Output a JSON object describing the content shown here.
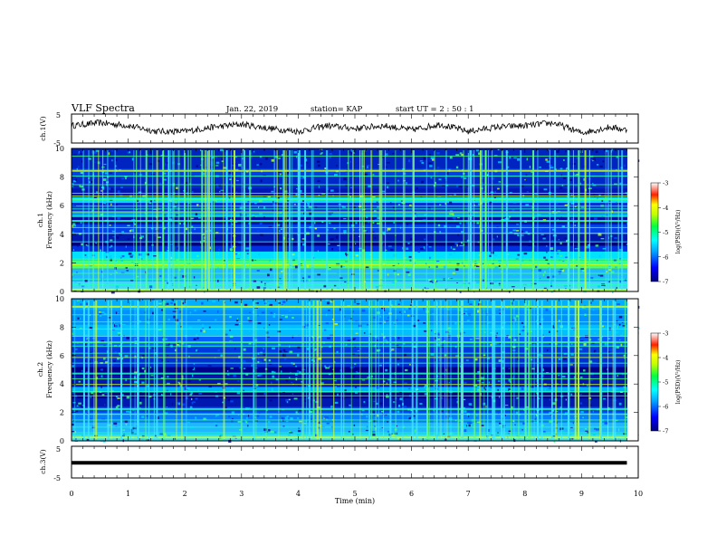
{
  "header": {
    "title": "VLF Spectra",
    "date": "Jan. 22, 2019",
    "station": "station= KAP",
    "start_ut": "start  UT =  2 : 50 : 1"
  },
  "chart_data": [
    {
      "type": "line",
      "panel": "ch1-waveform",
      "ylabel": "ch.1(V)",
      "ylim": [
        -5,
        5
      ],
      "yticks": [
        "5",
        "-5"
      ],
      "xlim": [
        0,
        10
      ],
      "series": [
        {
          "x": [
            0,
            0.5,
            1,
            1.5,
            2,
            2.5,
            3,
            3.5,
            4,
            4.5,
            5,
            5.5,
            6,
            6.5,
            7,
            7.5,
            8,
            8.5,
            9,
            9.5,
            9.8
          ],
          "values": [
            1,
            2,
            1,
            -1,
            -1,
            0.5,
            1.5,
            0,
            -1,
            1,
            0,
            1,
            -0.5,
            1.5,
            -1,
            0.5,
            1,
            2,
            -1.5,
            0.5,
            -0.5
          ]
        }
      ]
    },
    {
      "type": "heatmap",
      "panel": "ch1-spectrogram",
      "ylabel_top": "ch.1",
      "ylabel": "Frequency (kHz)",
      "ylim": [
        0,
        10
      ],
      "yticks": [
        "0",
        "2",
        "4",
        "6",
        "8",
        "10"
      ],
      "xlim": [
        0,
        10
      ],
      "colorbar": {
        "label": "log(PSD)(V²/Hz)",
        "range": [
          -7,
          -3
        ],
        "ticks": [
          "-3",
          "-4",
          "-5",
          "-6",
          "-7"
        ]
      }
    },
    {
      "type": "heatmap",
      "panel": "ch2-spectrogram",
      "ylabel_top": "ch.2",
      "ylabel": "Frequency (kHz)",
      "ylim": [
        0,
        10
      ],
      "yticks": [
        "0",
        "2",
        "4",
        "6",
        "8",
        "10"
      ],
      "xlim": [
        0,
        10
      ],
      "colorbar": {
        "label": "log(PSD)(V²/Hz)",
        "range": [
          -7,
          -3
        ],
        "ticks": [
          "-3",
          "-4",
          "-5",
          "-6",
          "-7"
        ]
      }
    },
    {
      "type": "line",
      "panel": "ch3-waveform",
      "ylabel": "ch.3(V)",
      "ylim": [
        -5,
        5
      ],
      "yticks": [
        "5",
        "-5"
      ],
      "xlim": [
        0,
        10
      ],
      "series": [
        {
          "x": [
            0,
            9.8
          ],
          "values": [
            -0.2,
            -0.2
          ]
        }
      ]
    }
  ],
  "xaxis": {
    "label": "Time (min)",
    "ticks": [
      "0",
      "1",
      "2",
      "3",
      "4",
      "5",
      "6",
      "7",
      "8",
      "9",
      "10"
    ]
  }
}
